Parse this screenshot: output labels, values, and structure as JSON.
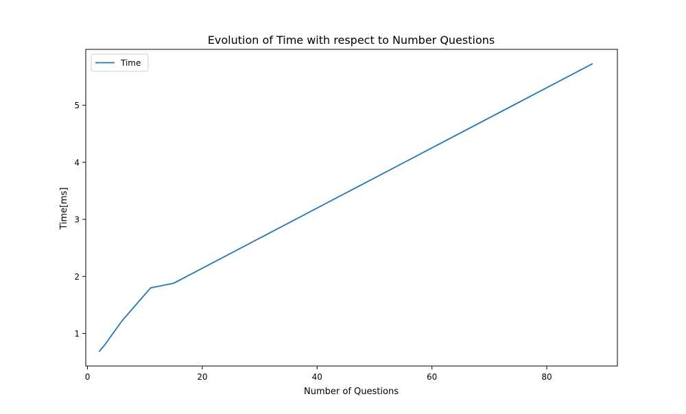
{
  "chart_data": {
    "type": "line",
    "title": "Evolution of Time with respect to Number Questions",
    "xlabel": "Number of Questions",
    "ylabel": "Time[ms]",
    "xlim": [
      -0.3,
      92.3
    ],
    "ylim": [
      0.43,
      5.98
    ],
    "xticks": [
      0,
      20,
      40,
      60,
      80
    ],
    "yticks": [
      1,
      2,
      3,
      4,
      5
    ],
    "grid": false,
    "legend_position": "top-left",
    "series": [
      {
        "name": "Time",
        "color": "#1f77b4",
        "x": [
          2,
          3,
          6,
          11,
          15,
          88
        ],
        "y": [
          0.68,
          0.8,
          1.22,
          1.8,
          1.88,
          5.73
        ]
      }
    ]
  }
}
